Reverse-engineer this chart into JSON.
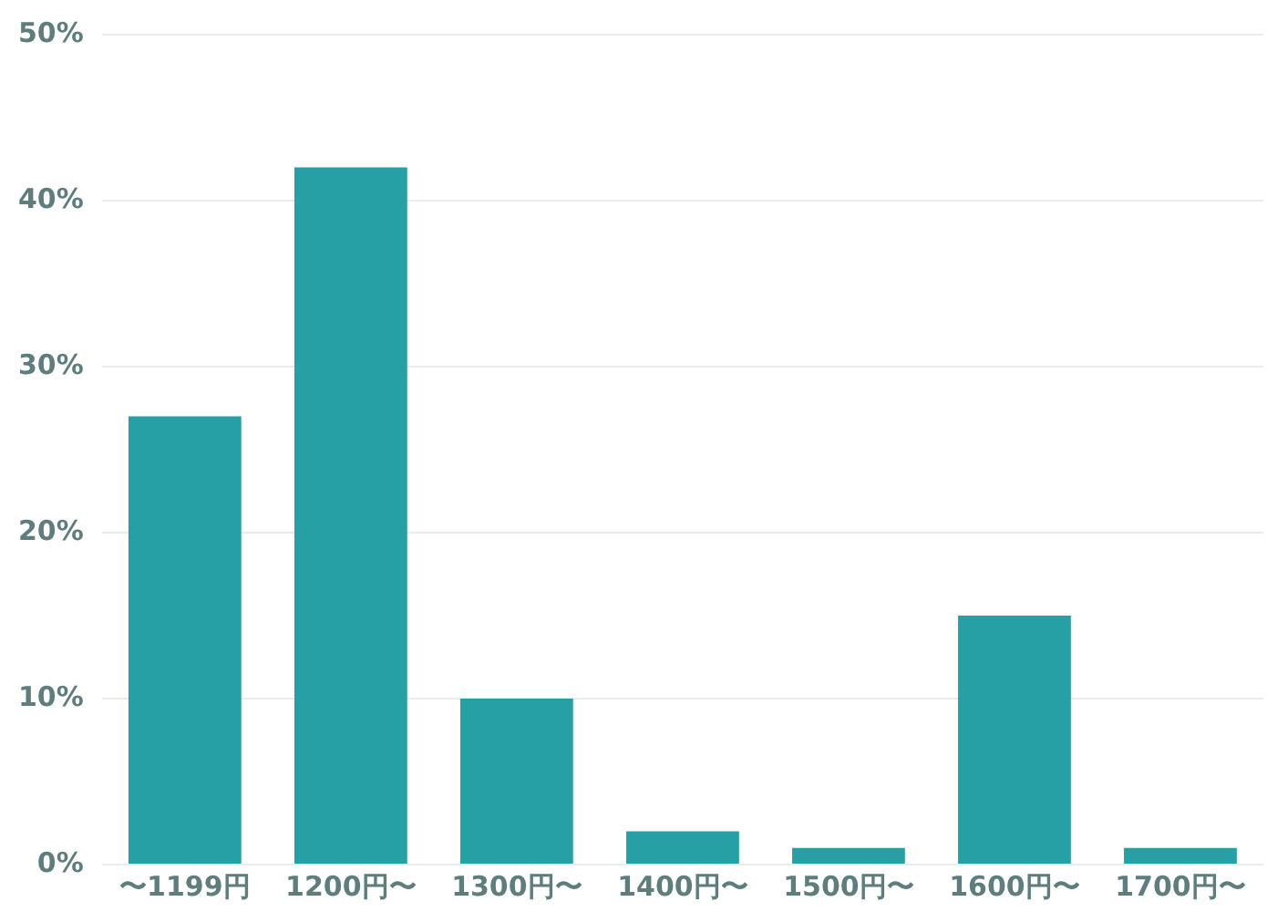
{
  "chart_data": {
    "type": "bar",
    "categories": [
      "〜1199円",
      "1200円〜",
      "1300円〜",
      "1400円〜",
      "1500円〜",
      "1600円〜",
      "1700円〜"
    ],
    "values": [
      27,
      42,
      10,
      2,
      1,
      15,
      1
    ],
    "color": "#26a0a4",
    "ylim": [
      0,
      50
    ],
    "yticks": [
      {
        "value": 0,
        "label": "0%"
      },
      {
        "value": 10,
        "label": "10%"
      },
      {
        "value": 20,
        "label": "20%"
      },
      {
        "value": 30,
        "label": "30%"
      },
      {
        "value": 40,
        "label": "40%"
      },
      {
        "value": 50,
        "label": "50%"
      }
    ],
    "grid": "y",
    "legend": false
  }
}
